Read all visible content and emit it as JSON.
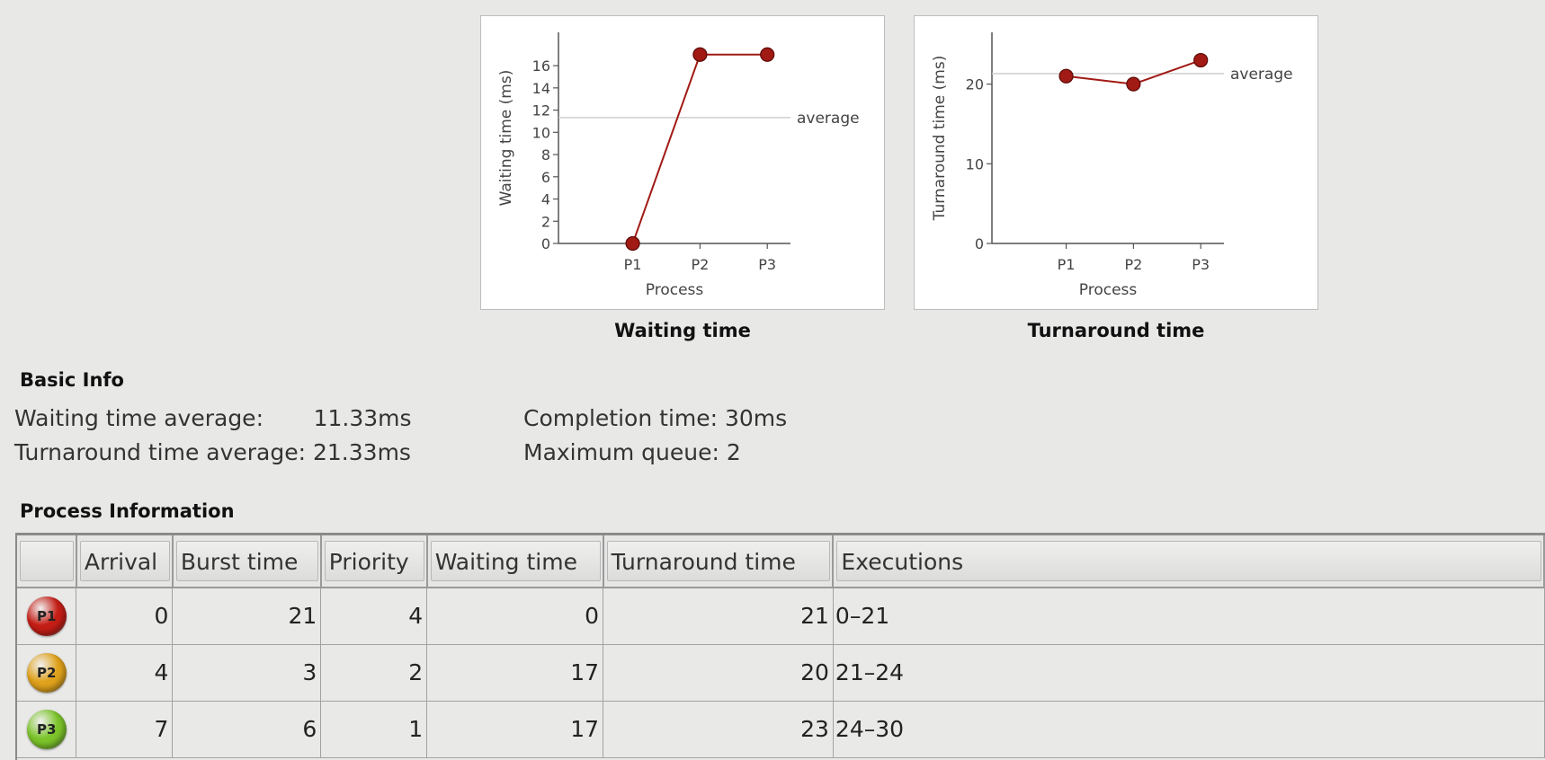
{
  "charts": {
    "waiting": {
      "caption": "Waiting time",
      "avg_label": "average",
      "series_color": "#a11a14",
      "average_line_color": "#cfcfcf"
    },
    "turnaround": {
      "caption": "Turnaround time",
      "avg_label": "average",
      "series_color": "#a11a14",
      "average_line_color": "#cfcfcf"
    }
  },
  "chart_data": [
    {
      "type": "line",
      "title": "Waiting time",
      "xlabel": "Process",
      "ylabel": "Waiting time (ms)",
      "categories": [
        "P1",
        "P2",
        "P3"
      ],
      "values": [
        0,
        17,
        17
      ],
      "average": 11.33,
      "ylim": [
        0,
        19
      ],
      "yticks": [
        0,
        2,
        4,
        6,
        8,
        10,
        12,
        14,
        16
      ],
      "grid": false
    },
    {
      "type": "line",
      "title": "Turnaround time",
      "xlabel": "Process",
      "ylabel": "Turnaround time (ms)",
      "categories": [
        "P1",
        "P2",
        "P3"
      ],
      "values": [
        21,
        20,
        23
      ],
      "average": 21.33,
      "ylim": [
        0,
        26.5
      ],
      "yticks": [
        0,
        10,
        20
      ],
      "grid": false
    }
  ],
  "basic_info": {
    "title": "Basic Info",
    "waiting_avg": "Waiting time average:       11.33ms",
    "turnaround_avg": "Turnaround time average: 21.33ms",
    "completion": "Completion time: 30ms",
    "max_queue": "Maximum queue: 2"
  },
  "process_info": {
    "title": "Process Information",
    "columns": [
      "",
      "Arrival",
      "Burst time",
      "Priority",
      "Waiting time",
      "Turnaround time",
      "Executions"
    ],
    "rows": [
      {
        "id": "P1",
        "color": "#c41e16",
        "arrival": "0",
        "burst": "21",
        "priority": "4",
        "waiting": "0",
        "turnaround": "21",
        "executions": "0–21"
      },
      {
        "id": "P2",
        "color": "#e0a21c",
        "arrival": "4",
        "burst": "3",
        "priority": "2",
        "waiting": "17",
        "turnaround": "20",
        "executions": "21–24"
      },
      {
        "id": "P3",
        "color": "#7cc42a",
        "arrival": "7",
        "burst": "6",
        "priority": "1",
        "waiting": "17",
        "turnaround": "23",
        "executions": "24–30"
      }
    ]
  }
}
